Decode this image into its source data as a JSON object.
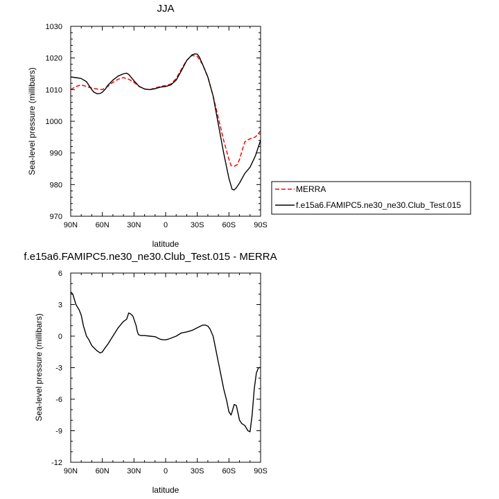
{
  "chart_data": [
    {
      "type": "line",
      "title": "JJA",
      "xlabel": "latitude",
      "ylabel": "Sea-level pressure (millibars)",
      "xlim": [
        90,
        -90
      ],
      "ylim": [
        970,
        1030
      ],
      "x_ticks": [
        "90N",
        "60N",
        "30N",
        "0",
        "30S",
        "60S",
        "90S"
      ],
      "x_tick_values": [
        90,
        60,
        30,
        0,
        -30,
        -60,
        -90
      ],
      "y_ticks": [
        "970",
        "980",
        "990",
        "1000",
        "1010",
        "1020",
        "1030"
      ],
      "y_tick_values": [
        970,
        980,
        990,
        1000,
        1010,
        1020,
        1030
      ],
      "legend_position": "right",
      "series": [
        {
          "name": "MERRA",
          "color": "#ff0000",
          "style": "dashed",
          "x": [
            90,
            85,
            80,
            75,
            70,
            65,
            60,
            55,
            50,
            45,
            40,
            35,
            30,
            25,
            20,
            15,
            10,
            5,
            0,
            -5,
            -10,
            -15,
            -20,
            -25,
            -30,
            -35,
            -40,
            -45,
            -50,
            -55,
            -60,
            -62,
            -65,
            -68,
            -70,
            -75,
            -80,
            -85,
            -90
          ],
          "values": [
            1010.0,
            1011.0,
            1011.5,
            1011.0,
            1010.5,
            1010.2,
            1010.0,
            1011.0,
            1012.3,
            1013.3,
            1013.8,
            1013.3,
            1012.3,
            1011.0,
            1010.2,
            1010.0,
            1010.5,
            1011.0,
            1011.3,
            1011.8,
            1013.5,
            1016.5,
            1019.3,
            1020.8,
            1020.5,
            1018.0,
            1014.0,
            1008.0,
            1001.0,
            994.0,
            988.0,
            986.0,
            985.8,
            986.3,
            988.0,
            993.5,
            994.5,
            995.0,
            997.0
          ]
        },
        {
          "name": "f.e15a6.FAMIPC5.ne30_ne30.Club_Test.015",
          "color": "#000000",
          "style": "solid",
          "x": [
            90,
            85,
            80,
            75,
            72,
            70,
            68,
            65,
            62,
            60,
            57,
            55,
            50,
            45,
            40,
            37,
            35,
            33,
            30,
            25,
            20,
            15,
            10,
            5,
            0,
            -5,
            -10,
            -15,
            -20,
            -25,
            -28,
            -30,
            -32,
            -35,
            -40,
            -45,
            -50,
            -55,
            -60,
            -63,
            -65,
            -67,
            -70,
            -75,
            -80,
            -85,
            -90
          ],
          "values": [
            1014.0,
            1013.8,
            1013.5,
            1012.5,
            1011.0,
            1010.0,
            1009.2,
            1008.7,
            1008.8,
            1009.2,
            1010.2,
            1011.3,
            1013.0,
            1014.3,
            1015.0,
            1015.2,
            1014.8,
            1014.0,
            1012.8,
            1011.0,
            1010.2,
            1010.0,
            1010.3,
            1010.8,
            1011.0,
            1011.5,
            1013.0,
            1016.0,
            1019.2,
            1021.0,
            1021.3,
            1021.2,
            1020.3,
            1018.0,
            1014.0,
            1008.0,
            999.0,
            990.0,
            982.0,
            978.5,
            978.3,
            979.0,
            980.5,
            983.5,
            985.5,
            989.0,
            994.0
          ]
        }
      ]
    },
    {
      "type": "line",
      "title": "f.e15a6.FAMIPC5.ne30_ne30.Club_Test.015 - MERRA",
      "xlabel": "latitude",
      "ylabel": "Sea-level pressure (millibars)",
      "xlim": [
        90,
        -90
      ],
      "ylim": [
        -12,
        6
      ],
      "x_ticks": [
        "90N",
        "60N",
        "30N",
        "0",
        "30S",
        "60S",
        "90S"
      ],
      "x_tick_values": [
        90,
        60,
        30,
        0,
        -30,
        -60,
        -90
      ],
      "y_ticks": [
        "-12",
        "-9",
        "-6",
        "-3",
        "0",
        "3",
        "6"
      ],
      "y_tick_values": [
        -12,
        -9,
        -6,
        -3,
        0,
        3,
        6
      ],
      "series": [
        {
          "color": "#000000",
          "style": "solid",
          "x": [
            90,
            88,
            85,
            82,
            80,
            78,
            75,
            73,
            70,
            67,
            65,
            62,
            60,
            58,
            55,
            50,
            45,
            40,
            37,
            35,
            33,
            31,
            30,
            28,
            27,
            26,
            25,
            23,
            20,
            15,
            10,
            5,
            2,
            0,
            -2,
            -5,
            -10,
            -15,
            -20,
            -25,
            -30,
            -35,
            -38,
            -40,
            -42,
            -45,
            -48,
            -50,
            -53,
            -55,
            -58,
            -60,
            -62,
            -63,
            -65,
            -67,
            -69,
            -70,
            -72,
            -75,
            -78,
            -80,
            -82,
            -84,
            -86,
            -88,
            -90
          ],
          "values": [
            4.2,
            4.0,
            3.0,
            2.5,
            2.0,
            1.0,
            0.0,
            -0.3,
            -0.9,
            -1.2,
            -1.4,
            -1.6,
            -1.5,
            -1.2,
            -0.8,
            0.0,
            0.8,
            1.4,
            1.6,
            2.2,
            2.1,
            1.9,
            1.6,
            1.0,
            0.5,
            0.2,
            0.1,
            0.05,
            0.05,
            0.0,
            -0.05,
            -0.3,
            -0.35,
            -0.35,
            -0.3,
            -0.2,
            0.0,
            0.3,
            0.4,
            0.55,
            0.8,
            1.05,
            1.05,
            0.95,
            0.7,
            0.0,
            -1.5,
            -2.5,
            -4.0,
            -5.0,
            -6.2,
            -7.2,
            -7.5,
            -7.2,
            -6.5,
            -6.6,
            -7.5,
            -8.0,
            -8.3,
            -8.5,
            -9.0,
            -9.1,
            -7.5,
            -5.0,
            -3.5,
            -3.0,
            -3.0
          ]
        }
      ]
    }
  ]
}
